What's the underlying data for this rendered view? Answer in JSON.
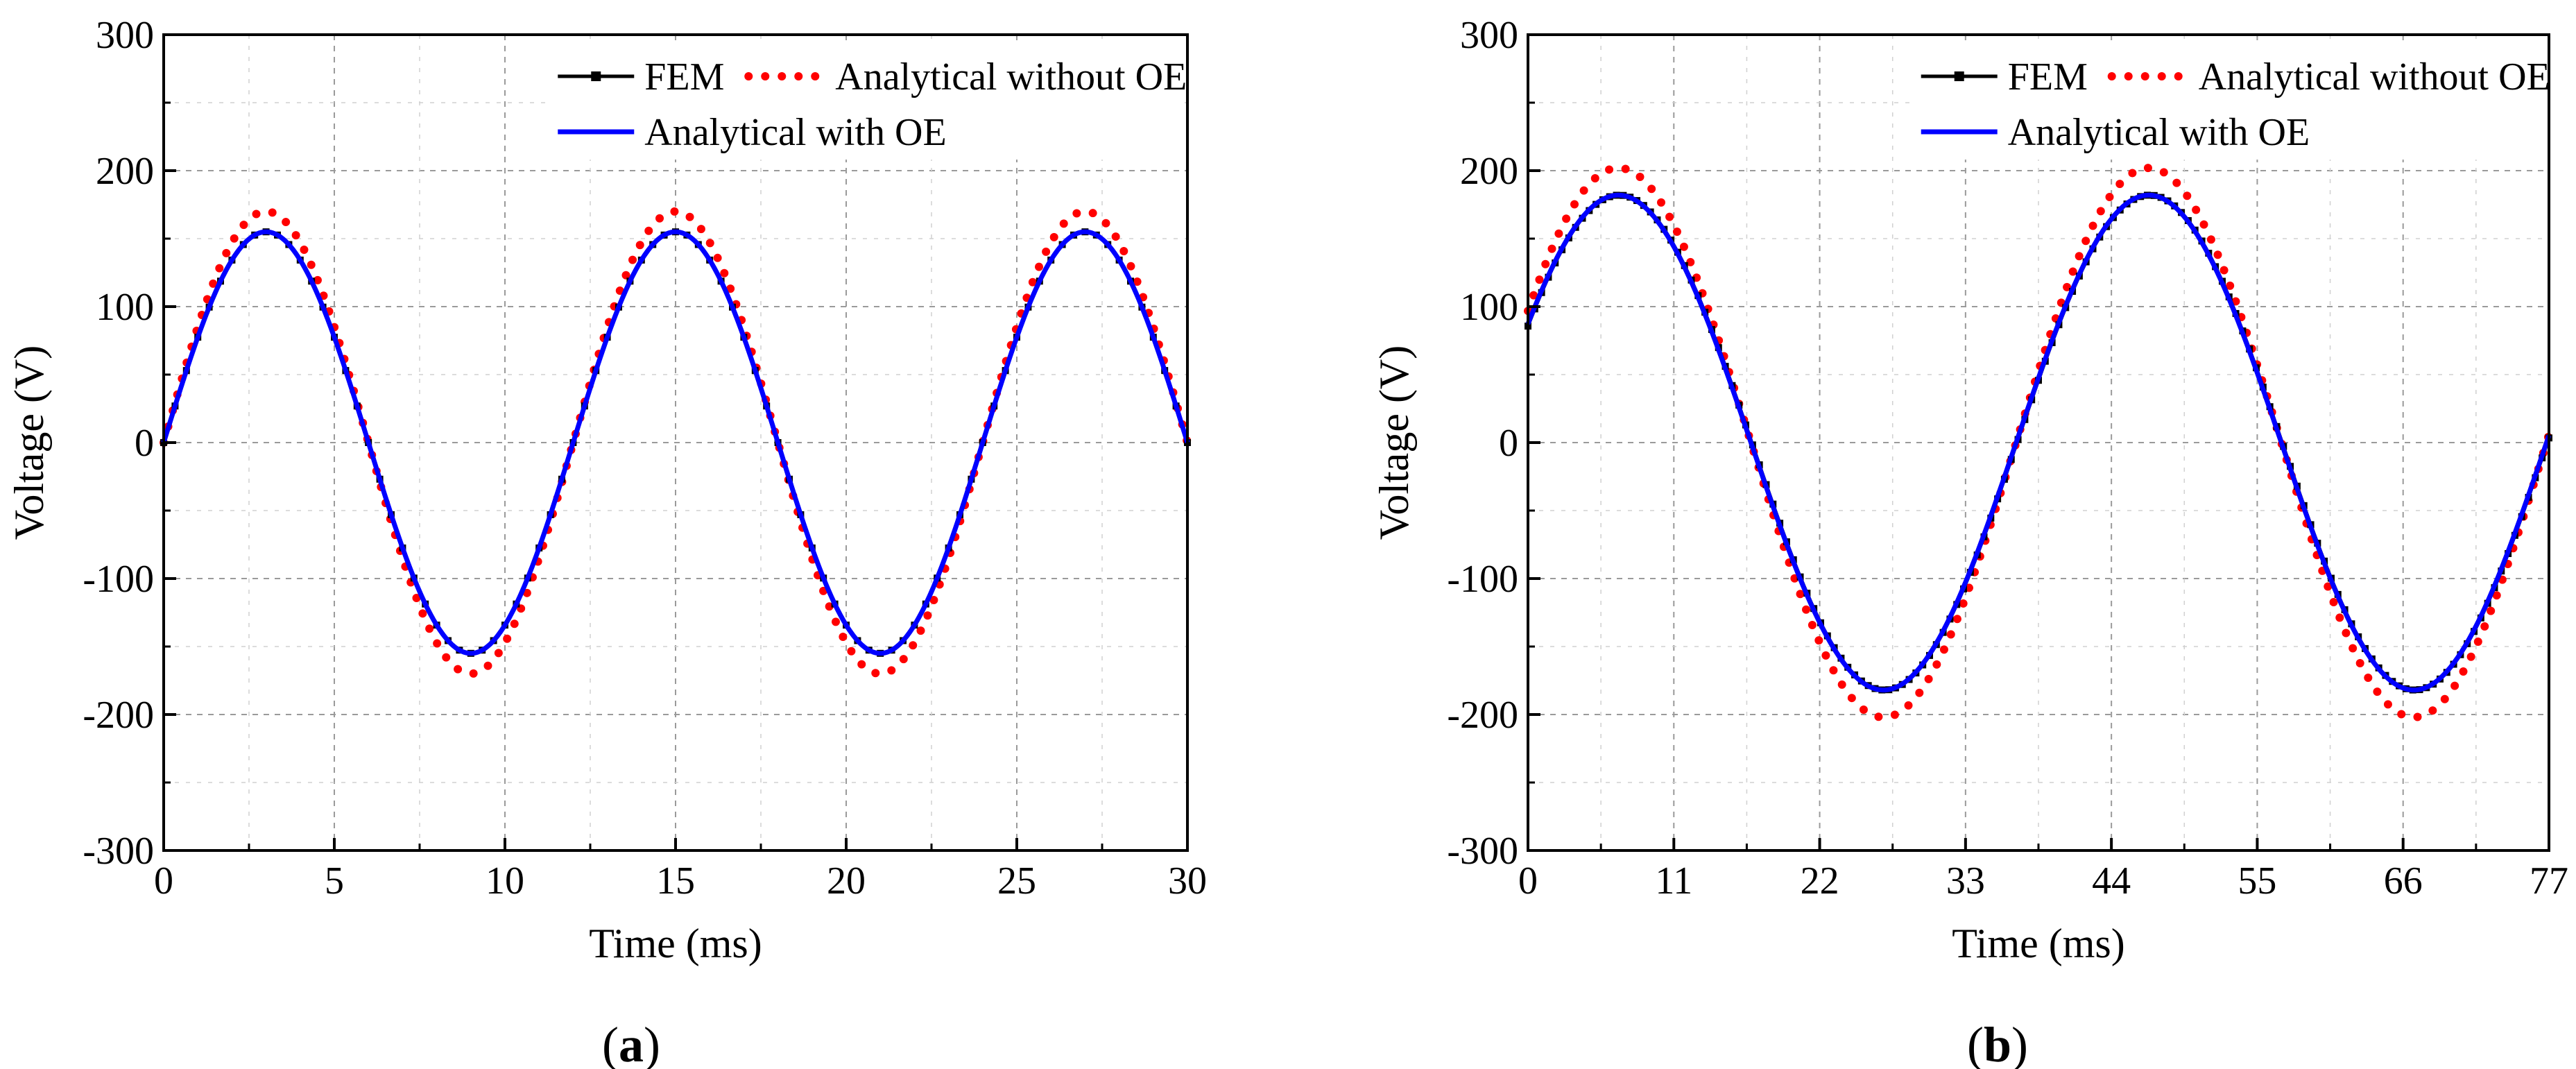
{
  "chart_data": [
    {
      "type": "line",
      "panel_label": "a",
      "xlabel": "Time (ms)",
      "ylabel": "Voltage (V)",
      "xlim": [
        0,
        30
      ],
      "ylim": [
        -300,
        300
      ],
      "xticks": [
        0,
        5,
        10,
        15,
        20,
        25,
        30
      ],
      "yticks": [
        -300,
        -200,
        -100,
        0,
        100,
        200,
        300
      ],
      "grid": true,
      "legend_position": "top-right",
      "series": [
        {
          "name": "FEM",
          "color": "#000000",
          "style": "line-square-markers",
          "amplitude": 155,
          "period": 12,
          "phase": 0,
          "x_start": 0,
          "x_end": 30
        },
        {
          "name": "Analytical without OE",
          "color": "#ff0000",
          "style": "dotted",
          "amplitude": 170,
          "period": 12,
          "phase": 0,
          "x_start": 0,
          "x_end": 30
        },
        {
          "name": "Analytical with OE",
          "color": "#0000ff",
          "style": "solid",
          "amplitude": 155,
          "period": 12,
          "phase": 0,
          "x_start": 0,
          "x_end": 30
        }
      ]
    },
    {
      "type": "line",
      "panel_label": "b",
      "xlabel": "Time (ms)",
      "ylabel": "Voltage (V)",
      "xlim": [
        0,
        77
      ],
      "ylim": [
        -300,
        300
      ],
      "xticks": [
        0,
        11,
        22,
        33,
        44,
        55,
        66,
        77
      ],
      "yticks": [
        -300,
        -200,
        -100,
        0,
        100,
        200,
        300
      ],
      "grid": true,
      "legend_position": "top-right",
      "series": [
        {
          "name": "FEM",
          "color": "#000000",
          "style": "line-square-markers",
          "amplitude": 182,
          "period": 40,
          "phase": 0.49,
          "x_start": 0,
          "x_end": 77
        },
        {
          "name": "Analytical without OE",
          "color": "#ff0000",
          "style": "dotted",
          "amplitude": 202,
          "period": 40,
          "phase": 0.5,
          "x_start": 0,
          "x_end": 77
        },
        {
          "name": "Analytical with OE",
          "color": "#0000ff",
          "style": "solid",
          "amplitude": 182,
          "period": 40,
          "phase": 0.5,
          "x_start": 0,
          "x_end": 77
        }
      ]
    }
  ]
}
